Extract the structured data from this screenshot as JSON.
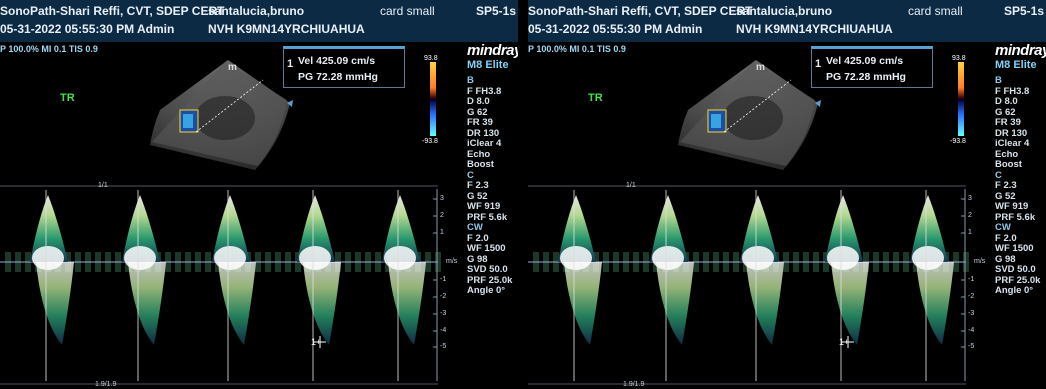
{
  "panels": [
    {
      "header": {
        "title": "SonoPath-Shari Reffi, CVT, SDEP CERT",
        "datetime": "05-31-2022 05:55:30 PM  Admin",
        "patient": "santalucia,bruno",
        "patient_id": "NVH K9MN14YRCHIUAHUA",
        "preset": "card small",
        "probe": "SP5-1s"
      },
      "params": "P 100.0%  MI 0.1  TIS 0.9",
      "logo": "mindray",
      "model": "M8 Elite",
      "view_label": "TR",
      "measurement": {
        "index": "1",
        "line1": "Vel   425.09 cm/s",
        "line2": "PG  72.28 mmHg"
      },
      "colorbar": {
        "top": "93.8",
        "bottom": "-93.8"
      },
      "sidebar": {
        "b_title": "B",
        "b_items": [
          "F FH3.8",
          "D 8.0",
          "G 62",
          "FR 39",
          "DR 130",
          "iClear 4",
          "Echo Boost"
        ],
        "c_title": "C",
        "c_items": [
          "F 2.3",
          "G 52",
          "WF 919",
          "PRF 5.6k"
        ],
        "cw_title": "CW",
        "cw_items": [
          "F 2.0",
          "WF 1500",
          "G 98",
          "SVD 50.0",
          "PRF 25.0k",
          "Angle 0°"
        ]
      },
      "timeline_label": "1/1",
      "timeline_bottom": "1.9/1.9",
      "scale_unit": "m/s",
      "scale_ticks": [
        "3",
        "2",
        "1",
        "-1",
        "-2",
        "-3",
        "-4",
        "-5"
      ],
      "cursor_label": "1+"
    },
    {
      "header": {
        "title": "SonoPath-Shari Reffi, CVT, SDEP CERT",
        "datetime": "05-31-2022 05:55:30 PM  Admin",
        "patient": "santalucia,bruno",
        "patient_id": "NVH K9MN14YRCHIUAHUA",
        "preset": "card small",
        "probe": "SP5-1s"
      },
      "params": "P 100.0%  MI 0.1  TIS 0.9",
      "logo": "mindray",
      "model": "M8 Elite",
      "view_label": "TR",
      "measurement": {
        "index": "1",
        "line1": "Vel   425.09 cm/s",
        "line2": "PG  72.28 mmHg"
      },
      "colorbar": {
        "top": "93.8",
        "bottom": "-93.8"
      },
      "sidebar": {
        "b_title": "B",
        "b_items": [
          "F FH3.8",
          "D 8.0",
          "G 62",
          "FR 39",
          "DR 130",
          "iClear 4",
          "Echo Boost"
        ],
        "c_title": "C",
        "c_items": [
          "F 2.3",
          "G 52",
          "WF 919",
          "PRF 5.6k"
        ],
        "cw_title": "CW",
        "cw_items": [
          "F 2.0",
          "WF 1500",
          "G 98",
          "SVD 50.0",
          "PRF 25.0k",
          "Angle 0°"
        ]
      },
      "timeline_label": "1/1",
      "timeline_bottom": "1.9/1.9",
      "scale_unit": "m/s",
      "scale_ticks": [
        "3",
        "2",
        "1",
        "-1",
        "-2",
        "-3",
        "-4",
        "-5"
      ],
      "cursor_label": "1+"
    }
  ],
  "colors": {
    "header_bg": "#0d2a45",
    "accent": "#56a0d3",
    "view_label": "#45e04a"
  }
}
